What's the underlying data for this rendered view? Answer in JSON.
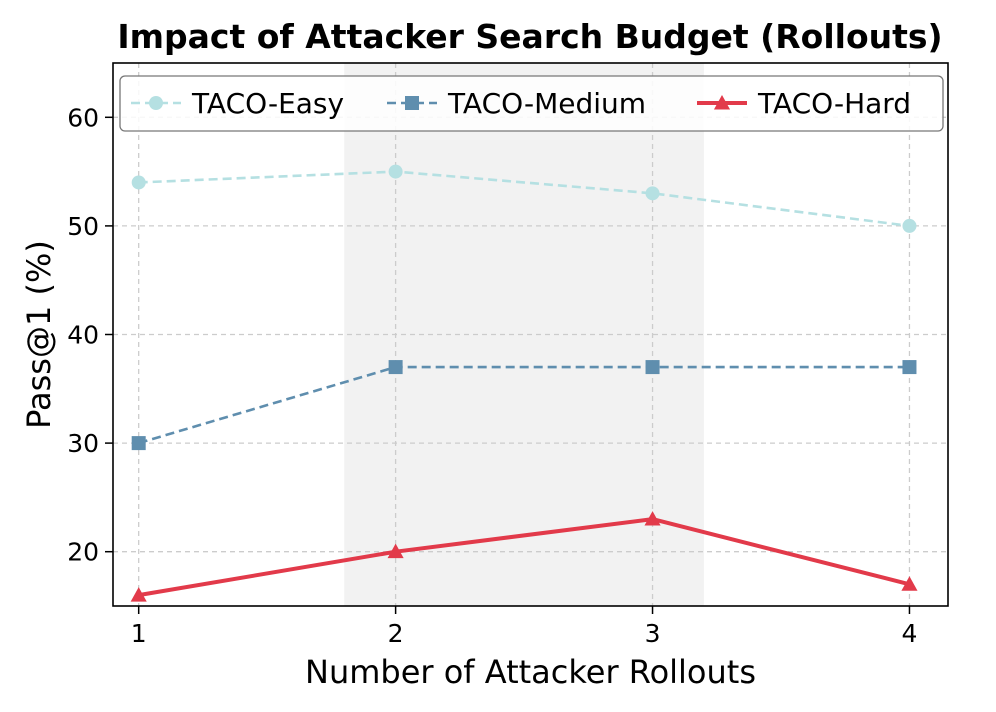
{
  "chart_data": {
    "type": "line",
    "title": "Impact of Attacker Search Budget (Rollouts)",
    "xlabel": "Number of Attacker Rollouts",
    "ylabel": "Pass@1 (%)",
    "x": [
      1,
      2,
      3,
      4
    ],
    "xticks": [
      "1",
      "2",
      "3",
      "4"
    ],
    "xlim": [
      0.9,
      4.15
    ],
    "ylim": [
      15,
      65
    ],
    "yticks": [
      20,
      30,
      40,
      50,
      60
    ],
    "grid": true,
    "legend_position": "top",
    "shaded_region": {
      "x_start": 1.8,
      "x_end": 3.2,
      "color": "#f2f2f2"
    },
    "series": [
      {
        "name": "TACO-Easy",
        "values": [
          54,
          55,
          53,
          50
        ],
        "color": "#b5e0e2",
        "marker": "circle",
        "linestyle": "dashed"
      },
      {
        "name": "TACO-Medium",
        "values": [
          30,
          37,
          37,
          37
        ],
        "color": "#5f8eae",
        "marker": "square",
        "linestyle": "dashed"
      },
      {
        "name": "TACO-Hard",
        "values": [
          16,
          20,
          23,
          17
        ],
        "color": "#e23a4a",
        "marker": "triangle",
        "linestyle": "solid"
      }
    ]
  }
}
